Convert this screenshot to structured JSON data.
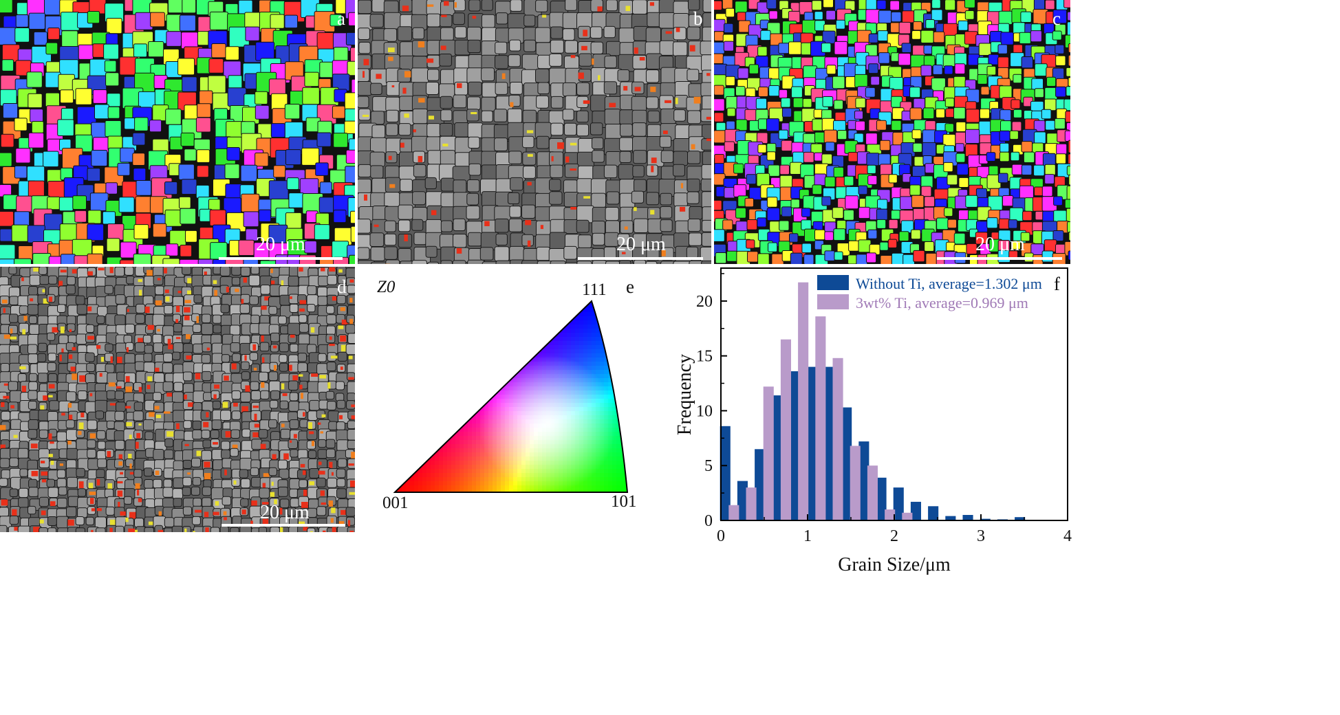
{
  "panels": {
    "a": {
      "label": "a",
      "scale_bar": "20 μm"
    },
    "b": {
      "label": "b",
      "scale_bar": "20 μm"
    },
    "c": {
      "label": "c",
      "scale_bar": "20 μm"
    },
    "d": {
      "label": "d",
      "scale_bar": "20 μm"
    },
    "e": {
      "label": "e",
      "ref_axis": "Z0",
      "corners": {
        "c001": "001",
        "c101": "101",
        "c111": "111"
      }
    },
    "f": {
      "label": "f"
    }
  },
  "colors": {
    "series1": "#0e4a96",
    "series2": "#b99bca",
    "legend1_text": "#0e4a96",
    "legend2_text": "#a07ab6",
    "map_bg": "#5a5a5a",
    "map_grain_boundary": "#1a1a1a"
  },
  "chart_data": {
    "type": "bar",
    "xlabel": "Grain Size/μm",
    "ylabel": "Frequency",
    "xlim": [
      0,
      4
    ],
    "ylim": [
      0,
      23
    ],
    "xticks": [
      "0",
      "1",
      "2",
      "3",
      "4"
    ],
    "yticks": [
      "0",
      "5",
      "10",
      "15",
      "20"
    ],
    "bin_width": 0.2,
    "series": [
      {
        "name": "Without Ti, average=1.302 μm",
        "x": [
          0.05,
          0.25,
          0.45,
          0.65,
          0.85,
          1.05,
          1.25,
          1.45,
          1.65,
          1.85,
          2.05,
          2.25,
          2.45,
          2.65,
          2.85,
          3.05,
          3.25,
          3.45,
          3.65,
          3.85
        ],
        "values": [
          8.6,
          3.6,
          6.5,
          11.4,
          13.6,
          14.0,
          14.0,
          10.3,
          7.2,
          3.9,
          3.0,
          1.7,
          1.3,
          0.4,
          0.5,
          0.15,
          0.1,
          0.3,
          0.05,
          0.05
        ]
      },
      {
        "name": "3wt% Ti, average=0.969 μm",
        "x": [
          0.15,
          0.35,
          0.55,
          0.75,
          0.95,
          1.15,
          1.35,
          1.55,
          1.75,
          1.95,
          2.15
        ],
        "values": [
          1.4,
          3.0,
          12.2,
          16.5,
          21.7,
          18.6,
          14.8,
          6.8,
          5.0,
          1.0,
          0.7
        ]
      }
    ]
  }
}
